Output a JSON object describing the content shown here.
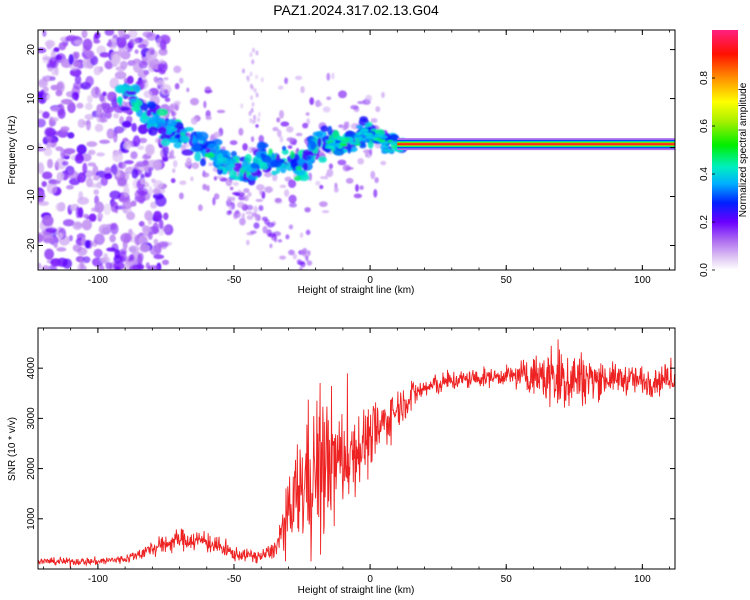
{
  "title": "PAZ1.2024.317.02.13.G04",
  "chart_data": [
    {
      "type": "heatmap",
      "xlabel": "Height of straight line (km)",
      "ylabel": "Frequency (Hz)",
      "xlim": [
        -122,
        112
      ],
      "ylim": [
        -25,
        24
      ],
      "x_ticks": [
        -100,
        -50,
        0,
        50,
        100
      ],
      "y_ticks": [
        -20,
        -10,
        0,
        10,
        20
      ],
      "colorbar": {
        "label": "Normalized spectral amplitude",
        "range": [
          0,
          1
        ],
        "ticks": [
          0.0,
          0.2,
          0.4,
          0.6,
          0.8
        ]
      },
      "ridge": [
        {
          "x": -90,
          "y": 11
        },
        {
          "x": -85,
          "y": 9
        },
        {
          "x": -80,
          "y": 6
        },
        {
          "x": -75,
          "y": 4
        },
        {
          "x": -70,
          "y": 3
        },
        {
          "x": -65,
          "y": 1
        },
        {
          "x": -60,
          "y": 0
        },
        {
          "x": -55,
          "y": -2
        },
        {
          "x": -50,
          "y": -4
        },
        {
          "x": -45,
          "y": -6
        },
        {
          "x": -40,
          "y": -2
        },
        {
          "x": -35,
          "y": -3
        },
        {
          "x": -30,
          "y": -2
        },
        {
          "x": -25,
          "y": -4
        },
        {
          "x": -20,
          "y": 1
        },
        {
          "x": -15,
          "y": 1
        },
        {
          "x": -10,
          "y": 1
        },
        {
          "x": -5,
          "y": 2
        },
        {
          "x": 0,
          "y": 2.5
        },
        {
          "x": 5,
          "y": 1.5
        },
        {
          "x": 10,
          "y": 0.7
        },
        {
          "x": 50,
          "y": 0.7
        },
        {
          "x": 112,
          "y": 0.7
        }
      ]
    },
    {
      "type": "line",
      "xlabel": "Height of straight line (km)",
      "ylabel": "SNR (10 * v/v)",
      "xlim": [
        -122,
        112
      ],
      "ylim": [
        0,
        4800
      ],
      "x_ticks": [
        -100,
        -50,
        0,
        50,
        100
      ],
      "y_ticks": [
        1000,
        2000,
        3000,
        4000
      ],
      "color": "#ee2222",
      "trend": [
        {
          "x": -122,
          "y": 150
        },
        {
          "x": -100,
          "y": 150
        },
        {
          "x": -90,
          "y": 200
        },
        {
          "x": -80,
          "y": 400
        },
        {
          "x": -70,
          "y": 600
        },
        {
          "x": -60,
          "y": 550
        },
        {
          "x": -50,
          "y": 300
        },
        {
          "x": -40,
          "y": 250
        },
        {
          "x": -35,
          "y": 400
        },
        {
          "x": -30,
          "y": 1000
        },
        {
          "x": -25,
          "y": 1700
        },
        {
          "x": -20,
          "y": 2000
        },
        {
          "x": -15,
          "y": 2100
        },
        {
          "x": -10,
          "y": 2200
        },
        {
          "x": -5,
          "y": 2400
        },
        {
          "x": 0,
          "y": 2600
        },
        {
          "x": 5,
          "y": 2900
        },
        {
          "x": 10,
          "y": 3200
        },
        {
          "x": 15,
          "y": 3450
        },
        {
          "x": 20,
          "y": 3600
        },
        {
          "x": 30,
          "y": 3750
        },
        {
          "x": 40,
          "y": 3800
        },
        {
          "x": 50,
          "y": 3850
        },
        {
          "x": 60,
          "y": 3850
        },
        {
          "x": 70,
          "y": 3800
        },
        {
          "x": 80,
          "y": 3800
        },
        {
          "x": 90,
          "y": 3800
        },
        {
          "x": 100,
          "y": 3750
        },
        {
          "x": 112,
          "y": 3800
        }
      ],
      "noise_amplitude": [
        {
          "x": -122,
          "y": 60
        },
        {
          "x": -90,
          "y": 80
        },
        {
          "x": -75,
          "y": 180
        },
        {
          "x": -60,
          "y": 200
        },
        {
          "x": -45,
          "y": 100
        },
        {
          "x": -35,
          "y": 150
        },
        {
          "x": -28,
          "y": 900
        },
        {
          "x": -20,
          "y": 1400
        },
        {
          "x": -15,
          "y": 1300
        },
        {
          "x": -10,
          "y": 900
        },
        {
          "x": 0,
          "y": 600
        },
        {
          "x": 10,
          "y": 350
        },
        {
          "x": 20,
          "y": 200
        },
        {
          "x": 50,
          "y": 160
        },
        {
          "x": 60,
          "y": 350
        },
        {
          "x": 70,
          "y": 700
        },
        {
          "x": 80,
          "y": 400
        },
        {
          "x": 90,
          "y": 250
        },
        {
          "x": 105,
          "y": 300
        },
        {
          "x": 112,
          "y": 200
        }
      ]
    }
  ]
}
